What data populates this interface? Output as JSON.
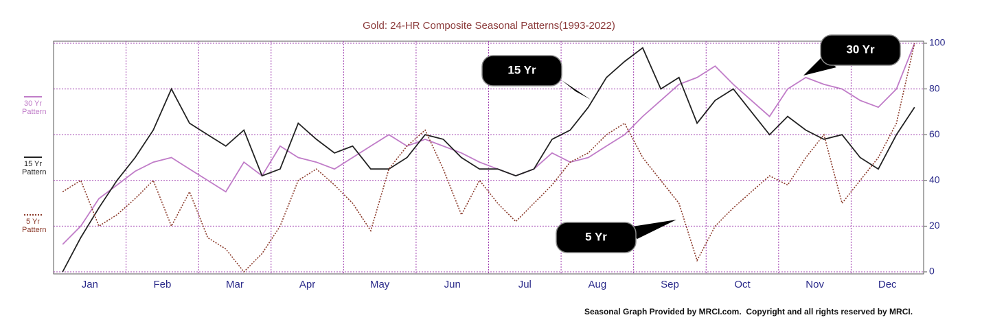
{
  "chart_data": {
    "type": "line",
    "title": "Gold: 24-HR Composite Seasonal Patterns(1993-2022)",
    "categories": [
      "Jan",
      null,
      null,
      null,
      "Feb",
      null,
      null,
      null,
      "Mar",
      null,
      null,
      null,
      "Apr",
      null,
      null,
      null,
      "May",
      null,
      null,
      null,
      "Jun",
      null,
      null,
      null,
      "Jul",
      null,
      null,
      null,
      "Aug",
      null,
      null,
      null,
      "Sep",
      null,
      null,
      null,
      "Oct",
      null,
      null,
      null,
      "Nov",
      null,
      null,
      null,
      "Dec",
      null,
      null,
      null
    ],
    "series": [
      {
        "name": "30 Yr Pattern",
        "color": "#c07cc8",
        "dashed": false,
        "values": [
          12,
          20,
          32,
          38,
          44,
          48,
          50,
          45,
          40,
          35,
          48,
          42,
          55,
          50,
          48,
          45,
          50,
          55,
          60,
          55,
          58,
          55,
          52,
          48,
          45,
          42,
          45,
          52,
          48,
          50,
          55,
          60,
          68,
          75,
          82,
          85,
          90,
          82,
          75,
          68,
          80,
          85,
          82,
          80,
          75,
          72,
          80,
          100
        ]
      },
      {
        "name": "15 Yr Pattern",
        "color": "#222222",
        "dashed": false,
        "values": [
          0,
          15,
          28,
          40,
          50,
          62,
          80,
          65,
          60,
          55,
          62,
          42,
          45,
          65,
          58,
          52,
          55,
          45,
          45,
          50,
          60,
          58,
          50,
          45,
          45,
          42,
          45,
          58,
          62,
          72,
          85,
          92,
          98,
          80,
          85,
          65,
          75,
          80,
          70,
          60,
          68,
          62,
          58,
          60,
          50,
          45,
          60,
          72
        ]
      },
      {
        "name": "5 Yr Pattern",
        "color": "#8b3a2a",
        "dashed": true,
        "values": [
          35,
          40,
          20,
          25,
          32,
          40,
          20,
          35,
          15,
          10,
          0,
          8,
          20,
          40,
          45,
          38,
          30,
          18,
          45,
          55,
          62,
          45,
          25,
          40,
          30,
          22,
          30,
          38,
          48,
          52,
          60,
          65,
          50,
          40,
          30,
          5,
          20,
          28,
          35,
          42,
          38,
          50,
          60,
          30,
          40,
          50,
          65,
          100
        ]
      }
    ],
    "ylim": [
      0,
      100
    ],
    "yticks": [
      0,
      20,
      40,
      60,
      80,
      100
    ],
    "grid": true,
    "annotations": [
      "15 Yr",
      "30 Yr",
      "5 Yr"
    ],
    "footer": "Seasonal Graph Provided by MRCI.com.  Copyright and all rights reserved by MRCI."
  }
}
